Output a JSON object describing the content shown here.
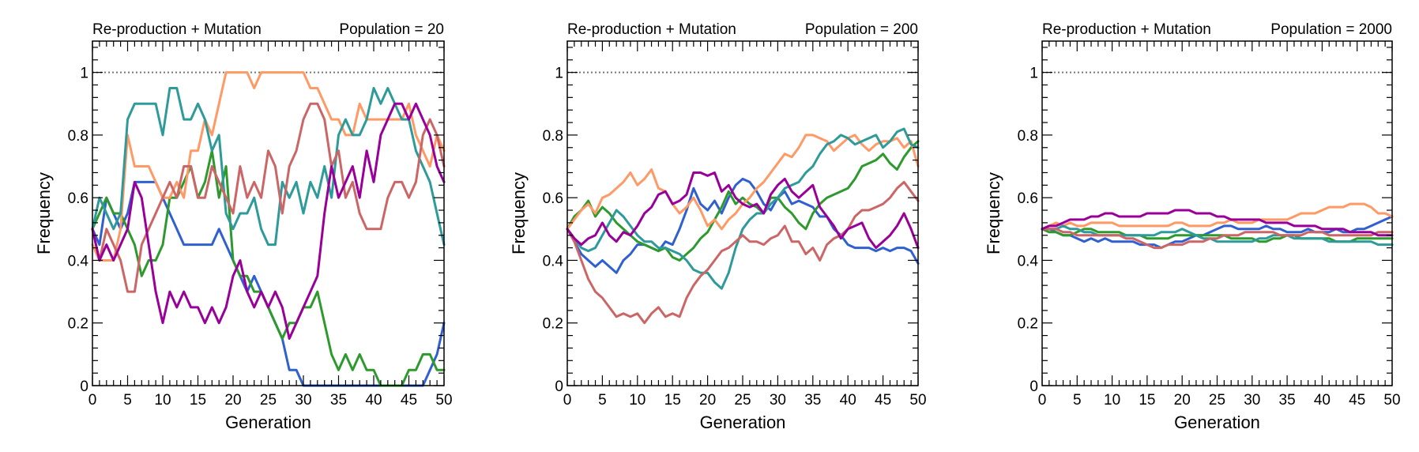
{
  "chart_data": [
    {
      "type": "line",
      "title_left": "Re-production + Mutation",
      "title_right": "Population = 20",
      "xlabel": "Generation",
      "ylabel": "Frequency",
      "xlim": [
        0,
        50
      ],
      "ylim": [
        0,
        1.1
      ],
      "xticks": [
        "0",
        "5",
        "10",
        "15",
        "20",
        "25",
        "30",
        "35",
        "40",
        "45",
        "50"
      ],
      "yticks": [
        "0",
        "0.2",
        "0.4",
        "0.6",
        "0.8",
        "1"
      ],
      "reference_line": 1,
      "grid": false,
      "series": [
        {
          "color": "#3060d0",
          "values": [
            0.5,
            0.45,
            0.6,
            0.55,
            0.5,
            0.55,
            0.65,
            0.65,
            0.65,
            0.65,
            0.6,
            0.55,
            0.5,
            0.45,
            0.45,
            0.45,
            0.45,
            0.45,
            0.5,
            0.45,
            0.4,
            0.35,
            0.3,
            0.35,
            0.3,
            0.25,
            0.2,
            0.15,
            0.05,
            0.05,
            0.0,
            0.0,
            0.0,
            0.0,
            0.0,
            0.0,
            0.0,
            0.0,
            0.0,
            0.0,
            0.0,
            0.0,
            0.0,
            0.0,
            0.0,
            0.0,
            0.0,
            0.0,
            0.05,
            0.1,
            0.2
          ]
        },
        {
          "color": "#2e9a2e",
          "values": [
            0.5,
            0.55,
            0.6,
            0.55,
            0.55,
            0.5,
            0.45,
            0.35,
            0.4,
            0.4,
            0.45,
            0.6,
            0.6,
            0.65,
            0.7,
            0.6,
            0.65,
            0.75,
            0.6,
            0.7,
            0.4,
            0.35,
            0.35,
            0.3,
            0.3,
            0.25,
            0.2,
            0.15,
            0.2,
            0.2,
            0.25,
            0.25,
            0.3,
            0.2,
            0.1,
            0.05,
            0.1,
            0.05,
            0.1,
            0.05,
            0.05,
            0.0,
            0.0,
            0.0,
            0.0,
            0.05,
            0.05,
            0.1,
            0.1,
            0.05,
            0.05
          ]
        },
        {
          "color": "#ff9966",
          "values": [
            0.45,
            0.4,
            0.4,
            0.4,
            0.5,
            0.8,
            0.7,
            0.7,
            0.7,
            0.65,
            0.6,
            0.6,
            0.65,
            0.6,
            0.75,
            0.75,
            0.85,
            0.8,
            0.9,
            1.0,
            1.0,
            1.0,
            1.0,
            0.95,
            1.0,
            1.0,
            1.0,
            1.0,
            1.0,
            1.0,
            1.0,
            0.95,
            0.95,
            0.9,
            0.85,
            0.85,
            0.8,
            0.8,
            0.9,
            0.85,
            0.85,
            0.85,
            0.85,
            0.85,
            0.85,
            0.9,
            0.8,
            0.75,
            0.7,
            0.8,
            0.75
          ]
        },
        {
          "color": "#2e9a9a",
          "values": [
            0.5,
            0.6,
            0.55,
            0.5,
            0.55,
            0.85,
            0.9,
            0.9,
            0.9,
            0.9,
            0.8,
            0.95,
            0.95,
            0.85,
            0.85,
            0.9,
            0.85,
            0.75,
            0.8,
            0.55,
            0.5,
            0.55,
            0.55,
            0.6,
            0.5,
            0.45,
            0.45,
            0.65,
            0.6,
            0.65,
            0.55,
            0.65,
            0.6,
            0.7,
            0.6,
            0.8,
            0.85,
            0.8,
            0.8,
            0.85,
            0.95,
            0.9,
            0.95,
            0.9,
            0.85,
            0.85,
            0.75,
            0.7,
            0.65,
            0.55,
            0.45
          ]
        },
        {
          "color": "#cc6666",
          "values": [
            0.5,
            0.4,
            0.5,
            0.45,
            0.4,
            0.3,
            0.3,
            0.45,
            0.5,
            0.55,
            0.6,
            0.65,
            0.6,
            0.7,
            0.7,
            0.6,
            0.6,
            0.7,
            0.65,
            0.6,
            0.55,
            0.7,
            0.6,
            0.65,
            0.6,
            0.75,
            0.7,
            0.55,
            0.7,
            0.75,
            0.85,
            0.9,
            0.9,
            0.85,
            0.7,
            0.75,
            0.6,
            0.65,
            0.55,
            0.5,
            0.5,
            0.5,
            0.6,
            0.65,
            0.65,
            0.6,
            0.65,
            0.8,
            0.85,
            0.8,
            0.7
          ]
        },
        {
          "color": "#990099",
          "values": [
            0.5,
            0.4,
            0.45,
            0.4,
            0.45,
            0.5,
            0.65,
            0.6,
            0.45,
            0.3,
            0.2,
            0.3,
            0.25,
            0.3,
            0.25,
            0.25,
            0.2,
            0.25,
            0.2,
            0.25,
            0.35,
            0.4,
            0.3,
            0.25,
            0.3,
            0.25,
            0.3,
            0.25,
            0.15,
            0.2,
            0.25,
            0.3,
            0.35,
            0.55,
            0.7,
            0.6,
            0.65,
            0.7,
            0.6,
            0.75,
            0.65,
            0.8,
            0.85,
            0.9,
            0.9,
            0.85,
            0.9,
            0.85,
            0.8,
            0.7,
            0.65
          ]
        }
      ]
    },
    {
      "type": "line",
      "title_left": "Re-production + Mutation",
      "title_right": "Population = 200",
      "xlabel": "Generation",
      "ylabel": "Frequency",
      "xlim": [
        0,
        50
      ],
      "ylim": [
        0,
        1.1
      ],
      "xticks": [
        "0",
        "5",
        "10",
        "15",
        "20",
        "25",
        "30",
        "35",
        "40",
        "45",
        "50"
      ],
      "yticks": [
        "0",
        "0.2",
        "0.4",
        "0.6",
        "0.8",
        "1"
      ],
      "reference_line": 1,
      "grid": false,
      "series": [
        {
          "color": "#3060d0",
          "values": [
            0.5,
            0.46,
            0.42,
            0.4,
            0.38,
            0.4,
            0.38,
            0.36,
            0.4,
            0.42,
            0.45,
            0.45,
            0.44,
            0.43,
            0.46,
            0.45,
            0.5,
            0.56,
            0.63,
            0.58,
            0.56,
            0.59,
            0.55,
            0.6,
            0.64,
            0.66,
            0.65,
            0.62,
            0.58,
            0.56,
            0.6,
            0.62,
            0.58,
            0.59,
            0.58,
            0.57,
            0.54,
            0.54,
            0.5,
            0.48,
            0.45,
            0.44,
            0.44,
            0.44,
            0.43,
            0.44,
            0.43,
            0.44,
            0.44,
            0.43,
            0.39
          ]
        },
        {
          "color": "#2e9a2e",
          "values": [
            0.5,
            0.54,
            0.56,
            0.59,
            0.54,
            0.57,
            0.55,
            0.52,
            0.5,
            0.48,
            0.46,
            0.45,
            0.44,
            0.43,
            0.44,
            0.41,
            0.4,
            0.42,
            0.44,
            0.47,
            0.49,
            0.53,
            0.57,
            0.62,
            0.58,
            0.6,
            0.58,
            0.57,
            0.55,
            0.6,
            0.6,
            0.57,
            0.55,
            0.52,
            0.5,
            0.55,
            0.58,
            0.6,
            0.61,
            0.62,
            0.63,
            0.66,
            0.7,
            0.71,
            0.72,
            0.74,
            0.71,
            0.69,
            0.73,
            0.76,
            0.78
          ]
        },
        {
          "color": "#ff9966",
          "values": [
            0.5,
            0.53,
            0.56,
            0.58,
            0.55,
            0.6,
            0.61,
            0.63,
            0.65,
            0.68,
            0.64,
            0.66,
            0.69,
            0.63,
            0.62,
            0.58,
            0.55,
            0.57,
            0.6,
            0.56,
            0.51,
            0.53,
            0.5,
            0.53,
            0.55,
            0.58,
            0.6,
            0.63,
            0.65,
            0.68,
            0.71,
            0.74,
            0.73,
            0.76,
            0.8,
            0.8,
            0.79,
            0.78,
            0.75,
            0.77,
            0.79,
            0.8,
            0.77,
            0.75,
            0.77,
            0.78,
            0.78,
            0.79,
            0.76,
            0.78,
            0.7
          ]
        },
        {
          "color": "#2e9a9a",
          "values": [
            0.5,
            0.47,
            0.44,
            0.43,
            0.44,
            0.48,
            0.52,
            0.56,
            0.54,
            0.51,
            0.48,
            0.46,
            0.46,
            0.44,
            0.44,
            0.43,
            0.42,
            0.4,
            0.37,
            0.36,
            0.36,
            0.33,
            0.31,
            0.36,
            0.44,
            0.5,
            0.53,
            0.55,
            0.55,
            0.58,
            0.6,
            0.63,
            0.64,
            0.65,
            0.68,
            0.7,
            0.74,
            0.77,
            0.78,
            0.8,
            0.79,
            0.77,
            0.78,
            0.79,
            0.8,
            0.76,
            0.78,
            0.81,
            0.82,
            0.77,
            0.76
          ]
        },
        {
          "color": "#cc6666",
          "values": [
            0.5,
            0.46,
            0.4,
            0.34,
            0.3,
            0.28,
            0.25,
            0.22,
            0.23,
            0.22,
            0.23,
            0.2,
            0.23,
            0.25,
            0.22,
            0.23,
            0.22,
            0.28,
            0.32,
            0.35,
            0.37,
            0.4,
            0.43,
            0.44,
            0.46,
            0.48,
            0.46,
            0.46,
            0.45,
            0.47,
            0.48,
            0.51,
            0.46,
            0.46,
            0.42,
            0.44,
            0.4,
            0.45,
            0.47,
            0.48,
            0.5,
            0.54,
            0.56,
            0.56,
            0.57,
            0.58,
            0.6,
            0.63,
            0.65,
            0.62,
            0.59
          ]
        },
        {
          "color": "#990099",
          "values": [
            0.5,
            0.47,
            0.45,
            0.47,
            0.48,
            0.52,
            0.48,
            0.46,
            0.49,
            0.48,
            0.51,
            0.55,
            0.57,
            0.61,
            0.62,
            0.58,
            0.59,
            0.61,
            0.68,
            0.68,
            0.67,
            0.68,
            0.62,
            0.64,
            0.6,
            0.58,
            0.57,
            0.58,
            0.55,
            0.61,
            0.64,
            0.66,
            0.62,
            0.6,
            0.62,
            0.64,
            0.57,
            0.54,
            0.51,
            0.47,
            0.5,
            0.51,
            0.52,
            0.47,
            0.44,
            0.46,
            0.48,
            0.51,
            0.55,
            0.5,
            0.44
          ]
        }
      ]
    },
    {
      "type": "line",
      "title_left": "Re-production + Mutation",
      "title_right": "Population = 2000",
      "xlabel": "Generation",
      "ylabel": "Frequency",
      "xlim": [
        0,
        50
      ],
      "ylim": [
        0,
        1.1
      ],
      "xticks": [
        "0",
        "5",
        "10",
        "15",
        "20",
        "25",
        "30",
        "35",
        "40",
        "45",
        "50"
      ],
      "yticks": [
        "0",
        "0.2",
        "0.4",
        "0.6",
        "0.8",
        "1"
      ],
      "reference_line": 1,
      "grid": false,
      "series": [
        {
          "color": "#3060d0",
          "values": [
            0.5,
            0.5,
            0.49,
            0.48,
            0.48,
            0.47,
            0.46,
            0.47,
            0.46,
            0.47,
            0.46,
            0.46,
            0.46,
            0.46,
            0.45,
            0.45,
            0.45,
            0.44,
            0.45,
            0.46,
            0.46,
            0.47,
            0.48,
            0.48,
            0.49,
            0.5,
            0.51,
            0.51,
            0.5,
            0.5,
            0.5,
            0.5,
            0.51,
            0.5,
            0.5,
            0.49,
            0.49,
            0.49,
            0.5,
            0.49,
            0.49,
            0.49,
            0.5,
            0.49,
            0.49,
            0.5,
            0.5,
            0.51,
            0.52,
            0.53,
            0.54
          ]
        },
        {
          "color": "#2e9a2e",
          "values": [
            0.5,
            0.49,
            0.49,
            0.48,
            0.48,
            0.49,
            0.5,
            0.5,
            0.49,
            0.49,
            0.49,
            0.49,
            0.48,
            0.48,
            0.48,
            0.47,
            0.47,
            0.47,
            0.47,
            0.48,
            0.48,
            0.48,
            0.48,
            0.48,
            0.48,
            0.48,
            0.48,
            0.47,
            0.47,
            0.47,
            0.47,
            0.46,
            0.46,
            0.47,
            0.47,
            0.48,
            0.48,
            0.47,
            0.47,
            0.47,
            0.47,
            0.47,
            0.46,
            0.46,
            0.46,
            0.47,
            0.47,
            0.47,
            0.47,
            0.47,
            0.47
          ]
        },
        {
          "color": "#ff9966",
          "values": [
            0.5,
            0.51,
            0.52,
            0.51,
            0.52,
            0.51,
            0.51,
            0.52,
            0.52,
            0.52,
            0.52,
            0.51,
            0.51,
            0.51,
            0.51,
            0.51,
            0.51,
            0.51,
            0.51,
            0.52,
            0.52,
            0.51,
            0.51,
            0.51,
            0.51,
            0.52,
            0.52,
            0.53,
            0.52,
            0.52,
            0.52,
            0.53,
            0.53,
            0.53,
            0.53,
            0.53,
            0.54,
            0.55,
            0.55,
            0.55,
            0.56,
            0.57,
            0.57,
            0.57,
            0.58,
            0.58,
            0.58,
            0.57,
            0.55,
            0.55,
            0.54
          ]
        },
        {
          "color": "#2e9a9a",
          "values": [
            0.5,
            0.5,
            0.5,
            0.51,
            0.5,
            0.5,
            0.49,
            0.49,
            0.48,
            0.48,
            0.48,
            0.48,
            0.48,
            0.48,
            0.48,
            0.48,
            0.48,
            0.49,
            0.49,
            0.49,
            0.5,
            0.49,
            0.48,
            0.47,
            0.47,
            0.46,
            0.46,
            0.46,
            0.46,
            0.46,
            0.46,
            0.47,
            0.47,
            0.48,
            0.48,
            0.48,
            0.47,
            0.47,
            0.47,
            0.47,
            0.47,
            0.46,
            0.46,
            0.46,
            0.46,
            0.46,
            0.46,
            0.46,
            0.45,
            0.45,
            0.45
          ]
        },
        {
          "color": "#cc6666",
          "values": [
            0.5,
            0.5,
            0.5,
            0.49,
            0.49,
            0.48,
            0.48,
            0.48,
            0.48,
            0.48,
            0.48,
            0.48,
            0.47,
            0.47,
            0.46,
            0.45,
            0.44,
            0.44,
            0.45,
            0.45,
            0.45,
            0.46,
            0.46,
            0.46,
            0.47,
            0.47,
            0.48,
            0.48,
            0.48,
            0.49,
            0.49,
            0.49,
            0.49,
            0.49,
            0.48,
            0.48,
            0.48,
            0.48,
            0.49,
            0.49,
            0.49,
            0.48,
            0.48,
            0.48,
            0.48,
            0.48,
            0.48,
            0.48,
            0.49,
            0.49,
            0.49
          ]
        },
        {
          "color": "#990099",
          "values": [
            0.5,
            0.51,
            0.51,
            0.52,
            0.53,
            0.53,
            0.53,
            0.54,
            0.54,
            0.55,
            0.55,
            0.54,
            0.54,
            0.54,
            0.54,
            0.55,
            0.55,
            0.55,
            0.55,
            0.56,
            0.56,
            0.56,
            0.55,
            0.55,
            0.55,
            0.54,
            0.54,
            0.53,
            0.53,
            0.53,
            0.53,
            0.53,
            0.52,
            0.52,
            0.52,
            0.52,
            0.51,
            0.51,
            0.51,
            0.51,
            0.5,
            0.5,
            0.5,
            0.5,
            0.49,
            0.49,
            0.49,
            0.49,
            0.48,
            0.48,
            0.48
          ]
        }
      ]
    }
  ]
}
